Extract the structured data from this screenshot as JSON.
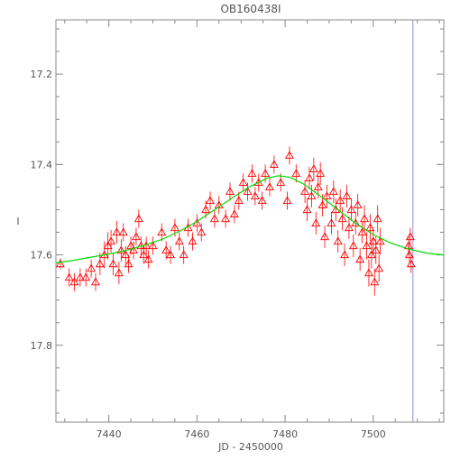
{
  "chart_data": {
    "type": "scatter",
    "title": "OB160438I",
    "xlabel": "JD - 2450000",
    "ylabel": "I",
    "xlim": [
      7428,
      7516
    ],
    "ylim": [
      17.97,
      17.08
    ],
    "y_inverted": true,
    "grid": false,
    "legend": "none",
    "x_ticks": [
      7440,
      7460,
      7480,
      7500
    ],
    "x_tick_labels": [
      "7440",
      "7460",
      "7480",
      "7500"
    ],
    "y_ticks": [
      17.2,
      17.4,
      17.6,
      17.8
    ],
    "y_tick_labels": [
      "17.2",
      "17.4",
      "17.6",
      "17.8"
    ],
    "colors": {
      "points": "#ff0000",
      "model": "#00dd00",
      "marker_line": "#9090dd",
      "axes": "#888888",
      "text": "#555555"
    },
    "series": [
      {
        "kind": "points",
        "marker": "triangle-up",
        "error_bars": true,
        "x": [
          7429.0,
          7431.0,
          7432.2,
          7433.5,
          7434.8,
          7436.0,
          7437.0,
          7438.0,
          7439.0,
          7439.8,
          7440.5,
          7441.0,
          7441.8,
          7442.3,
          7442.8,
          7443.3,
          7443.8,
          7444.5,
          7445.0,
          7445.6,
          7446.2,
          7446.8,
          7447.3,
          7447.9,
          7448.5,
          7449.0,
          7450.0,
          7452.0,
          7453.0,
          7454.0,
          7455.0,
          7456.0,
          7457.0,
          7458.0,
          7459.0,
          7460.0,
          7461.0,
          7462.0,
          7463.0,
          7464.0,
          7465.0,
          7466.5,
          7467.5,
          7468.5,
          7469.5,
          7470.5,
          7471.5,
          7472.5,
          7473.2,
          7474.0,
          7474.8,
          7475.5,
          7476.5,
          7477.5,
          7479.0,
          7480.5,
          7481.0,
          7482.5,
          7484.5,
          7485.0,
          7485.5,
          7486.0,
          7486.5,
          7487.0,
          7487.5,
          7488.0,
          7488.5,
          7489.0,
          7489.5,
          7490.5,
          7491.0,
          7491.5,
          7492.0,
          7492.5,
          7493.0,
          7493.5,
          7494.0,
          7494.5,
          7495.0,
          7495.5,
          7496.0,
          7496.5,
          7497.0,
          7497.5,
          7498.0,
          7498.5,
          7499.0,
          7499.3,
          7499.6,
          7500.0,
          7500.3,
          7500.6,
          7501.0,
          7501.3,
          7501.6,
          7508.0,
          7508.2,
          7508.4,
          7508.6
        ],
        "y": [
          17.62,
          17.65,
          17.66,
          17.65,
          17.65,
          17.63,
          17.66,
          17.62,
          17.6,
          17.58,
          17.57,
          17.62,
          17.55,
          17.64,
          17.59,
          17.55,
          17.6,
          17.62,
          17.58,
          17.59,
          17.56,
          17.52,
          17.58,
          17.6,
          17.58,
          17.61,
          17.58,
          17.55,
          17.59,
          17.6,
          17.54,
          17.57,
          17.6,
          17.54,
          17.57,
          17.53,
          17.55,
          17.5,
          17.48,
          17.52,
          17.49,
          17.52,
          17.46,
          17.51,
          17.48,
          17.44,
          17.46,
          17.42,
          17.47,
          17.44,
          17.48,
          17.42,
          17.45,
          17.4,
          17.44,
          17.48,
          17.38,
          17.42,
          17.46,
          17.5,
          17.43,
          17.47,
          17.41,
          17.53,
          17.45,
          17.42,
          17.49,
          17.56,
          17.47,
          17.53,
          17.46,
          17.5,
          17.57,
          17.48,
          17.52,
          17.6,
          17.47,
          17.54,
          17.5,
          17.58,
          17.53,
          17.49,
          17.61,
          17.55,
          17.52,
          17.58,
          17.64,
          17.54,
          17.6,
          17.57,
          17.66,
          17.59,
          17.52,
          17.63,
          17.57,
          17.58,
          17.6,
          17.56,
          17.62
        ],
        "yerr": [
          0.012,
          0.02,
          0.02,
          0.02,
          0.02,
          0.02,
          0.02,
          0.025,
          0.03,
          0.03,
          0.025,
          0.025,
          0.025,
          0.025,
          0.025,
          0.02,
          0.02,
          0.02,
          0.02,
          0.02,
          0.02,
          0.02,
          0.02,
          0.02,
          0.02,
          0.02,
          0.02,
          0.02,
          0.02,
          0.02,
          0.02,
          0.02,
          0.02,
          0.02,
          0.02,
          0.02,
          0.02,
          0.02,
          0.02,
          0.02,
          0.02,
          0.02,
          0.02,
          0.02,
          0.02,
          0.02,
          0.02,
          0.02,
          0.02,
          0.02,
          0.02,
          0.02,
          0.02,
          0.02,
          0.02,
          0.02,
          0.02,
          0.02,
          0.025,
          0.025,
          0.025,
          0.025,
          0.025,
          0.025,
          0.025,
          0.025,
          0.025,
          0.025,
          0.025,
          0.025,
          0.025,
          0.025,
          0.025,
          0.025,
          0.025,
          0.025,
          0.025,
          0.025,
          0.025,
          0.025,
          0.025,
          0.025,
          0.025,
          0.025,
          0.03,
          0.03,
          0.03,
          0.03,
          0.03,
          0.03,
          0.03,
          0.03,
          0.03,
          0.03,
          0.03,
          0.02,
          0.02,
          0.02,
          0.02
        ]
      },
      {
        "kind": "model-curve",
        "x": [
          7428,
          7432,
          7436,
          7440,
          7444,
          7448,
          7452,
          7456,
          7460,
          7464,
          7468,
          7472,
          7476,
          7478.5,
          7481,
          7484,
          7488,
          7492,
          7496,
          7500,
          7504,
          7508,
          7512,
          7516
        ],
        "y": [
          17.618,
          17.612,
          17.605,
          17.598,
          17.59,
          17.579,
          17.566,
          17.548,
          17.526,
          17.5,
          17.474,
          17.449,
          17.43,
          17.425,
          17.428,
          17.442,
          17.47,
          17.5,
          17.53,
          17.555,
          17.574,
          17.587,
          17.596,
          17.6
        ]
      },
      {
        "kind": "vertical-marker",
        "x": 7509
      }
    ]
  }
}
